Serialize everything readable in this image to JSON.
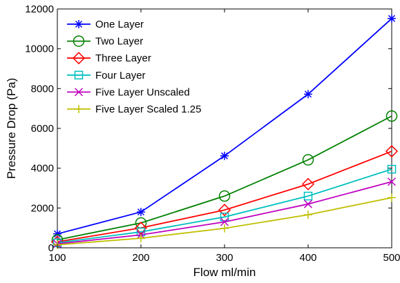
{
  "chart_data": {
    "type": "line",
    "title": "",
    "xlabel": "Flow ml/min",
    "ylabel": "Pressure Drop (Pa)",
    "x": [
      100,
      200,
      300,
      400,
      500
    ],
    "xlim": [
      100,
      500
    ],
    "ylim": [
      0,
      12000
    ],
    "xticks": [
      100,
      200,
      300,
      400,
      500
    ],
    "yticks": [
      0,
      2000,
      4000,
      6000,
      8000,
      10000,
      12000
    ],
    "grid": false,
    "legend_position": "top-left",
    "series": [
      {
        "name": "One Layer",
        "color": "#0000ff",
        "marker": "asterisk",
        "values": [
          700,
          1800,
          4620,
          7720,
          11520
        ]
      },
      {
        "name": "Two Layer",
        "color": "#008000",
        "marker": "circle",
        "values": [
          400,
          1250,
          2600,
          4420,
          6620
        ]
      },
      {
        "name": "Three Layer",
        "color": "#ff0000",
        "marker": "diamond",
        "values": [
          300,
          1000,
          1900,
          3200,
          4850
        ]
      },
      {
        "name": "Four Layer",
        "color": "#00bfbf",
        "marker": "square",
        "values": [
          250,
          800,
          1550,
          2600,
          3950
        ]
      },
      {
        "name": "Five Layer Unscaled",
        "color": "#bf00bf",
        "marker": "x",
        "values": [
          200,
          650,
          1300,
          2200,
          3320
        ]
      },
      {
        "name": "Five Layer Scaled 1.25",
        "color": "#bfbf00",
        "marker": "plus",
        "values": [
          150,
          480,
          980,
          1660,
          2520
        ]
      }
    ]
  }
}
